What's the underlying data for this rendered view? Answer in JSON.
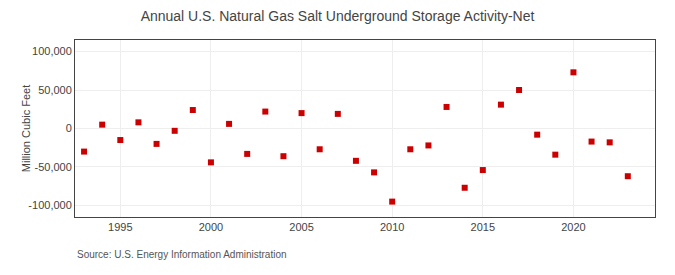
{
  "chart_data": {
    "type": "scatter",
    "title": "Annual U.S. Natural Gas Salt Underground Storage Activity-Net",
    "ylabel": "Million Cubic Feet",
    "annotations": [
      "Source: U.S. Energy Information Administration"
    ],
    "x": [
      1993,
      1994,
      1995,
      1996,
      1997,
      1998,
      1999,
      2000,
      2001,
      2002,
      2003,
      2004,
      2005,
      2006,
      2007,
      2008,
      2009,
      2010,
      2011,
      2012,
      2013,
      2014,
      2015,
      2016,
      2017,
      2018,
      2019,
      2020,
      2021,
      2022,
      2023
    ],
    "values": [
      -30000,
      5000,
      -15000,
      8000,
      -20000,
      -3000,
      24000,
      -44000,
      6000,
      -33000,
      22000,
      -36000,
      20000,
      -27000,
      19000,
      -42000,
      -57000,
      -95000,
      -27000,
      -22000,
      28000,
      -77000,
      -54000,
      31000,
      50000,
      -8000,
      -34000,
      73000,
      -17000,
      -18000,
      -62000
    ],
    "color": "#cc0000",
    "marker": "square",
    "xlim": [
      1992.5,
      2024.5
    ],
    "xticks": [
      1995,
      2000,
      2005,
      2010,
      2015,
      2020
    ],
    "ylim": [
      -115000,
      115000
    ],
    "yticks": [
      {
        "value": -100000,
        "label": "-100,000"
      },
      {
        "value": -50000,
        "label": "-50,000"
      },
      0,
      {
        "value": 50000,
        "label": "50,000"
      },
      {
        "value": 100000,
        "label": "100,000"
      }
    ],
    "grid": true
  }
}
